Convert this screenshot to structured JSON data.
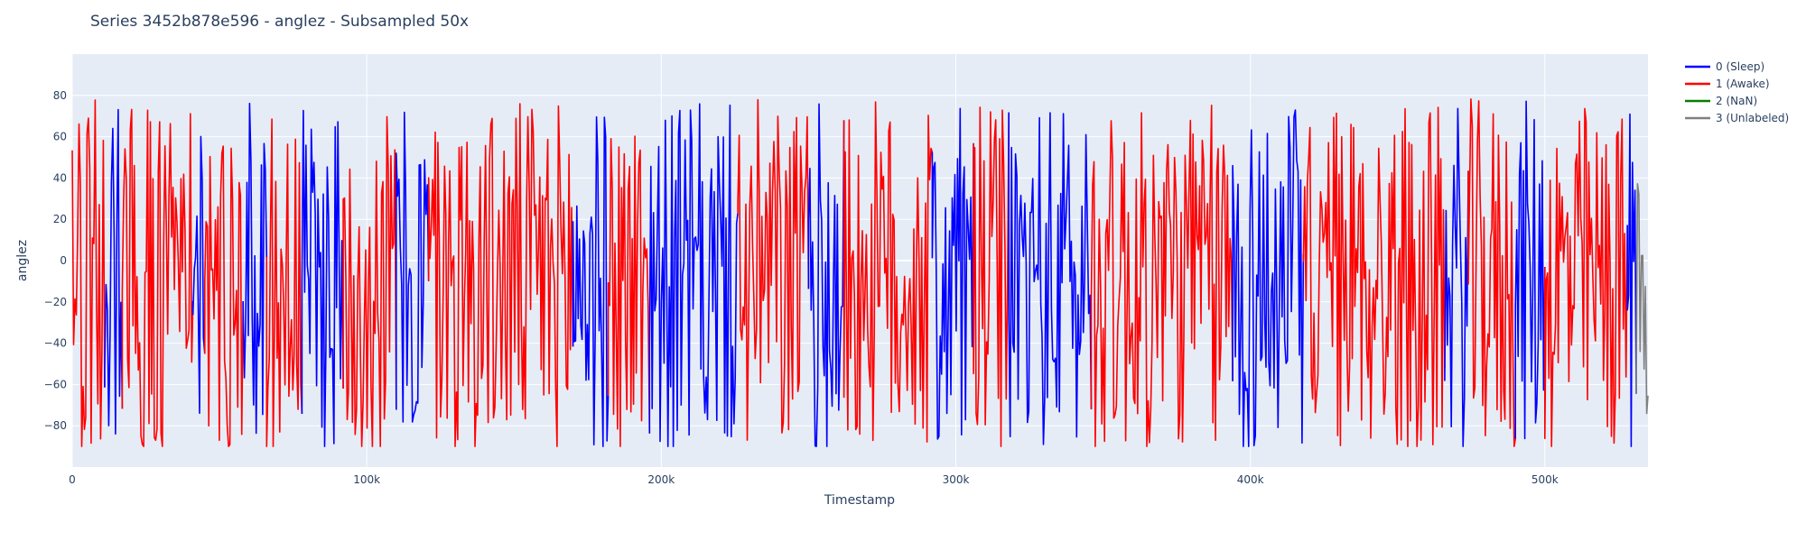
{
  "chart_data": {
    "type": "line",
    "title": "Series 3452b878e596 - anglez - Subsampled 50x",
    "xlabel": "Timestamp",
    "ylabel": "anglez",
    "xlim": [
      0,
      535000
    ],
    "ylim": [
      -100,
      100
    ],
    "x_ticks": [
      0,
      100000,
      200000,
      300000,
      400000,
      500000
    ],
    "x_tick_labels": [
      "0",
      "100k",
      "200k",
      "300k",
      "400k",
      "500k"
    ],
    "y_ticks": [
      -80,
      -60,
      -40,
      -20,
      0,
      20,
      40,
      60,
      80
    ],
    "y_tick_labels": [
      "−80",
      "−60",
      "−40",
      "−20",
      "0",
      "20",
      "40",
      "60",
      "80"
    ],
    "grid": true,
    "legend_position": "top-right",
    "series": [
      {
        "name": "0 (Sleep)",
        "color": "#0000ff"
      },
      {
        "name": "1 (Awake)",
        "color": "#ff0000"
      },
      {
        "name": "2 (NaN)",
        "color": "#008000"
      },
      {
        "name": "3 (Unlabeled)",
        "color": "#808080"
      }
    ],
    "segments": [
      {
        "label": 1,
        "x": [
          0,
          11000
        ]
      },
      {
        "label": 0,
        "x": [
          11000,
          17000
        ]
      },
      {
        "label": 1,
        "x": [
          17000,
          41000
        ]
      },
      {
        "label": 0,
        "x": [
          41000,
          45000
        ]
      },
      {
        "label": 1,
        "x": [
          45000,
          58000
        ]
      },
      {
        "label": 0,
        "x": [
          58000,
          66000
        ]
      },
      {
        "label": 1,
        "x": [
          66000,
          78000
        ]
      },
      {
        "label": 0,
        "x": [
          78000,
          92000
        ]
      },
      {
        "label": 1,
        "x": [
          92000,
          110000
        ]
      },
      {
        "label": 0,
        "x": [
          110000,
          121000
        ]
      },
      {
        "label": 1,
        "x": [
          121000,
          170000
        ]
      },
      {
        "label": 0,
        "x": [
          170000,
          182000
        ]
      },
      {
        "label": 1,
        "x": [
          182000,
          196000
        ]
      },
      {
        "label": 0,
        "x": [
          196000,
          226000
        ]
      },
      {
        "label": 1,
        "x": [
          226000,
          250000
        ]
      },
      {
        "label": 0,
        "x": [
          250000,
          262000
        ]
      },
      {
        "label": 1,
        "x": [
          262000,
          292000
        ]
      },
      {
        "label": 0,
        "x": [
          292000,
          306000
        ]
      },
      {
        "label": 1,
        "x": [
          306000,
          318000
        ]
      },
      {
        "label": 0,
        "x": [
          318000,
          346000
        ]
      },
      {
        "label": 1,
        "x": [
          346000,
          394000
        ]
      },
      {
        "label": 0,
        "x": [
          394000,
          418000
        ]
      },
      {
        "label": 1,
        "x": [
          418000,
          466000
        ]
      },
      {
        "label": 0,
        "x": [
          466000,
          474000
        ]
      },
      {
        "label": 1,
        "x": [
          474000,
          490000
        ]
      },
      {
        "label": 0,
        "x": [
          490000,
          500000
        ]
      },
      {
        "label": 1,
        "x": [
          500000,
          528000
        ]
      },
      {
        "label": 0,
        "x": [
          528000,
          531000
        ]
      },
      {
        "label": 3,
        "x": [
          531000,
          535000
        ]
      }
    ],
    "annotations": []
  }
}
